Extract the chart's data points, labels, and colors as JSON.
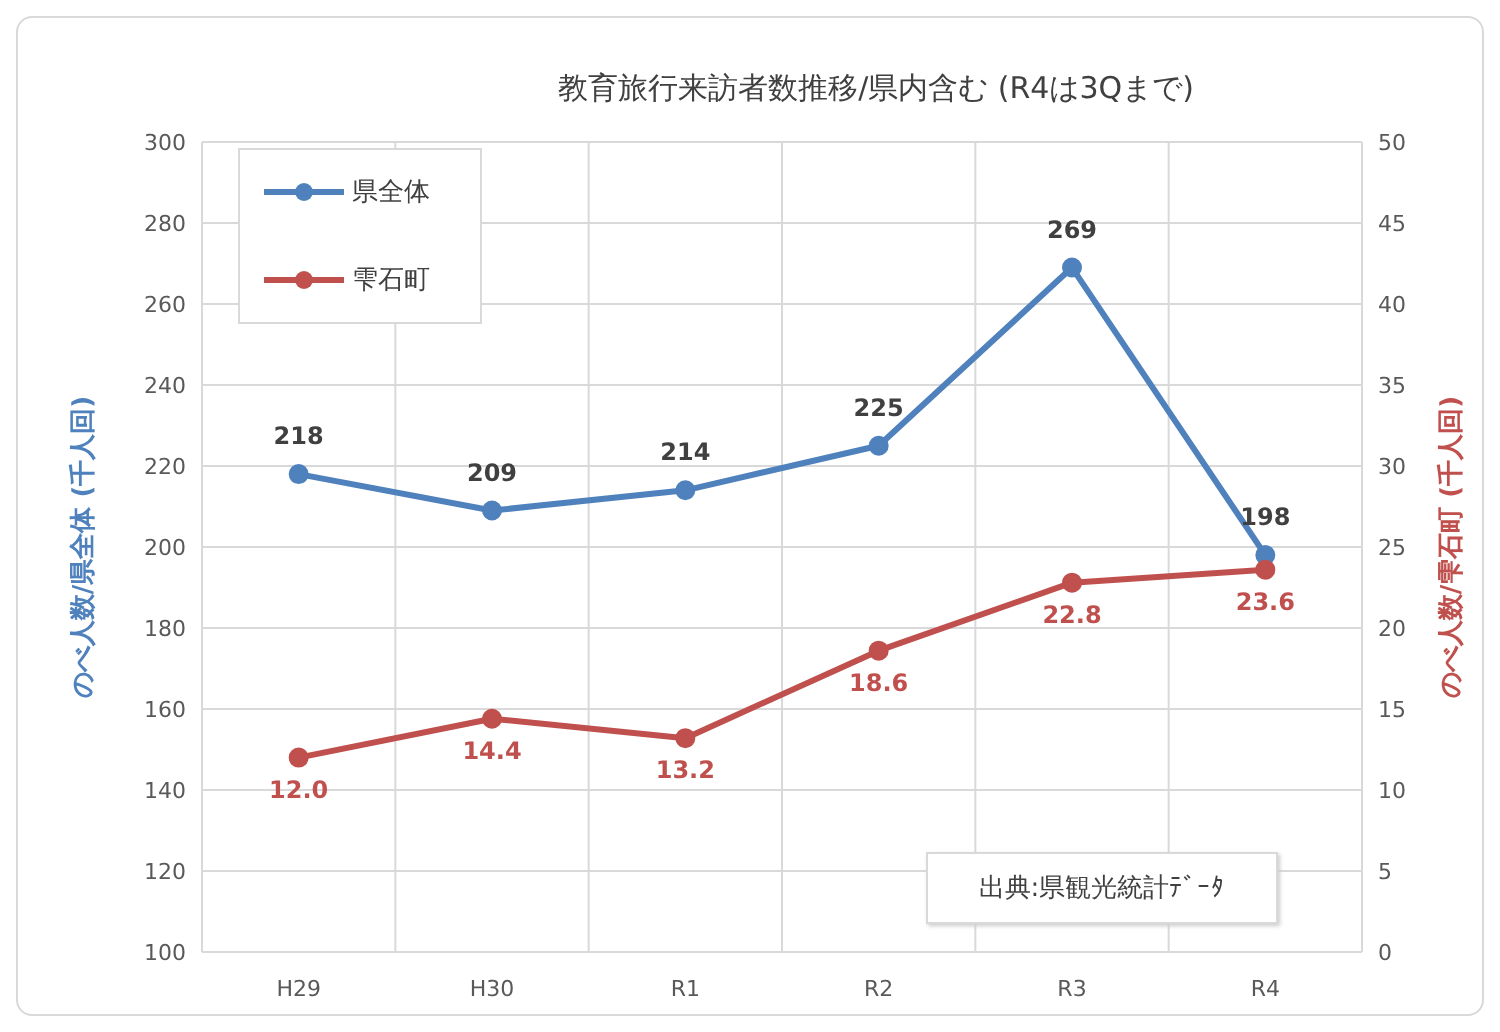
{
  "chart_data": {
    "type": "line",
    "title": "教育旅行来訪者数推移/県内含む (R4は3Qまで)",
    "ylabel": "のべ人数/県全体 (千人回)",
    "y2label": "のべ人数/雫石町 (千人回)",
    "annotations": [
      "出典:県観光統計ﾃﾞｰﾀ"
    ],
    "categories": [
      "H29",
      "H30",
      "R1",
      "R2",
      "R3",
      "R4"
    ],
    "series": [
      {
        "name": "県全体",
        "color": "#4f81bd",
        "values": [
          218,
          209,
          214,
          225,
          269,
          198
        ],
        "value_labels": [
          "218",
          "209",
          "214",
          "225",
          "269",
          "198"
        ]
      },
      {
        "name": "雫石町",
        "color": "#c0504d",
        "axis": "y2",
        "values": [
          12.0,
          14.4,
          13.2,
          18.6,
          22.8,
          23.6
        ],
        "value_labels": [
          "12.0",
          "14.4",
          "13.2",
          "18.6",
          "22.8",
          "23.6"
        ]
      }
    ],
    "ylim": [
      100,
      300
    ],
    "yticks": [
      100,
      120,
      140,
      160,
      180,
      200,
      220,
      240,
      260,
      280,
      300
    ],
    "y2lim": [
      0,
      50
    ],
    "y2ticks": [
      0,
      5,
      10,
      15,
      20,
      25,
      30,
      35,
      40,
      45,
      50
    ],
    "grid": true,
    "legend": "top left",
    "marker": "circle",
    "line_style": "solid"
  }
}
